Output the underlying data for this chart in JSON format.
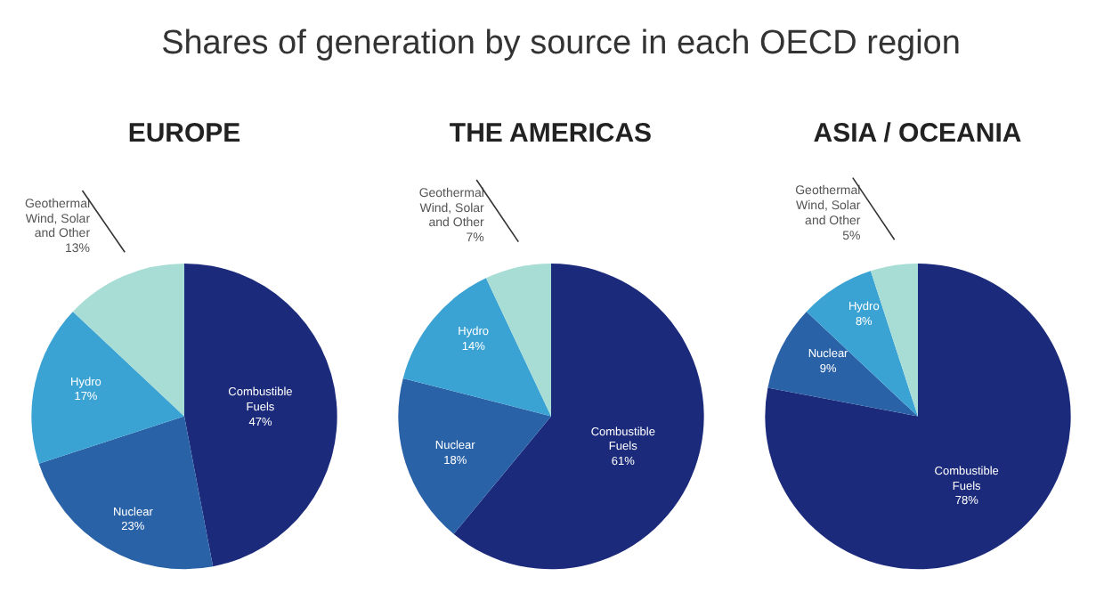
{
  "chart_data": [
    {
      "type": "pie",
      "title": "Shares of generation by source in each OECD region",
      "subtitle": "EUROPE",
      "categories": [
        "Combustible Fuels",
        "Nuclear",
        "Hydro",
        "Geothermal Wind, Solar and Other"
      ],
      "values": [
        47,
        23,
        17,
        13
      ],
      "value_labels": [
        "47%",
        "23%",
        "17%",
        "13%"
      ],
      "colors": [
        "#1b2a7a",
        "#2a62a8",
        "#3ba3d3",
        "#a8ddd6"
      ]
    },
    {
      "type": "pie",
      "subtitle": "THE AMERICAS",
      "categories": [
        "Combustible Fuels",
        "Nuclear",
        "Hydro",
        "Geothermal Wind, Solar and Other"
      ],
      "values": [
        61,
        18,
        14,
        7
      ],
      "value_labels": [
        "61%",
        "18%",
        "14%",
        "7%"
      ],
      "colors": [
        "#1b2a7a",
        "#2a62a8",
        "#3ba3d3",
        "#a8ddd6"
      ]
    },
    {
      "type": "pie",
      "subtitle": "ASIA / OCEANIA",
      "categories": [
        "Combustible Fuels",
        "Nuclear",
        "Hydro",
        "Geothermal Wind, Solar and Other"
      ],
      "values": [
        78,
        9,
        8,
        5
      ],
      "value_labels": [
        "78%",
        "9%",
        "8%",
        "5%"
      ],
      "colors": [
        "#1b2a7a",
        "#2a62a8",
        "#3ba3d3",
        "#a8ddd6"
      ]
    }
  ]
}
